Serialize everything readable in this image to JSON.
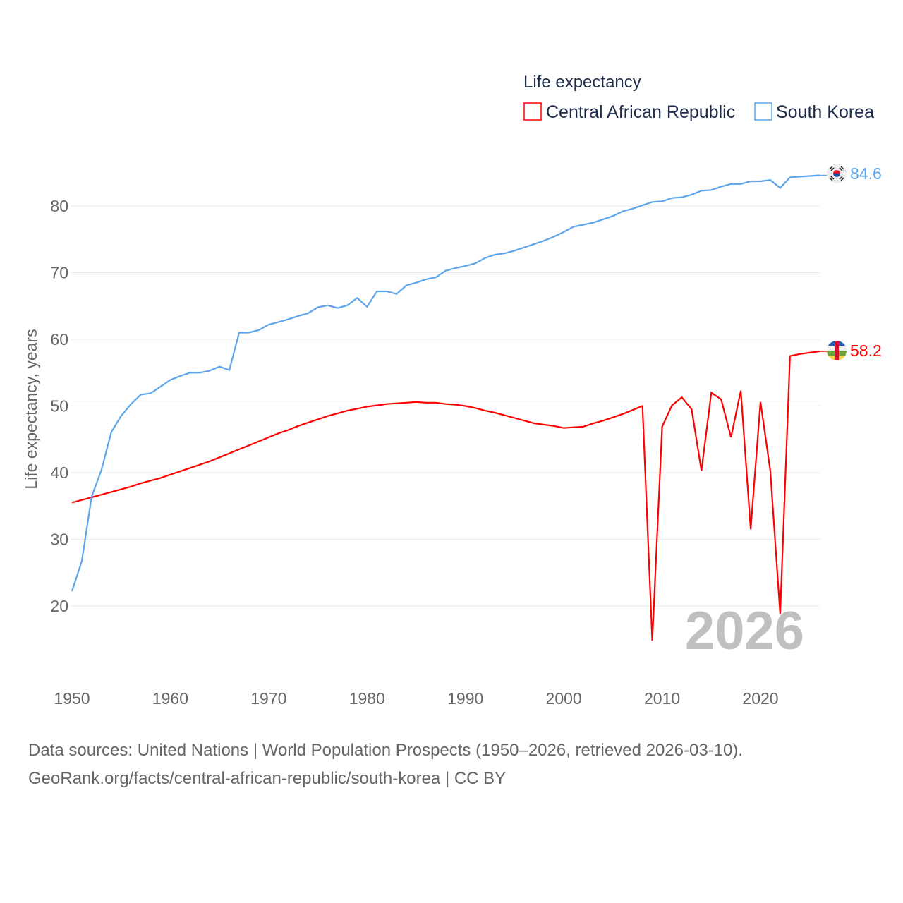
{
  "chart_data": {
    "type": "line",
    "title": "Life expectancy",
    "xlabel": "",
    "ylabel": "Life expectancy, years",
    "xlim": [
      1950,
      2026
    ],
    "ylim": [
      10,
      90
    ],
    "x_ticks": [
      1950,
      1960,
      1970,
      1980,
      1990,
      2000,
      2010,
      2020
    ],
    "y_ticks": [
      20,
      30,
      40,
      50,
      60,
      70,
      80
    ],
    "grid": true,
    "legend_position": "top-right",
    "year_watermark": "2026",
    "x_start": 1950,
    "series": [
      {
        "name": "Central African Republic",
        "color": "#ff0000",
        "end_label": "58.2",
        "flag": "central-african-republic-flag",
        "values": [
          35.5,
          35.9,
          36.3,
          36.7,
          37.1,
          37.5,
          37.9,
          38.4,
          38.8,
          39.2,
          39.7,
          40.2,
          40.7,
          41.2,
          41.7,
          42.3,
          42.9,
          43.5,
          44.1,
          44.7,
          45.3,
          45.9,
          46.4,
          47.0,
          47.5,
          48.0,
          48.5,
          48.9,
          49.3,
          49.6,
          49.9,
          50.1,
          50.3,
          50.4,
          50.5,
          50.6,
          50.5,
          50.5,
          50.3,
          50.2,
          50.0,
          49.7,
          49.3,
          49.0,
          48.6,
          48.2,
          47.8,
          47.4,
          47.2,
          47.0,
          46.7,
          46.8,
          46.9,
          47.4,
          47.8,
          48.3,
          48.8,
          49.4,
          50.0,
          14.8,
          46.9,
          50.1,
          51.3,
          49.5,
          40.3,
          52.0,
          51.0,
          45.3,
          52.3,
          31.5,
          50.6,
          40.3,
          18.8,
          57.5,
          57.8,
          58.0,
          58.2
        ]
      },
      {
        "name": "South Korea",
        "color": "#5da5ea",
        "end_label": "84.6",
        "flag": "south-korea-flag",
        "values": [
          22.2,
          26.7,
          36.4,
          40.4,
          46.1,
          48.5,
          50.3,
          51.7,
          51.9,
          52.9,
          53.9,
          54.5,
          55.0,
          55.0,
          55.3,
          55.9,
          55.4,
          61.0,
          61.0,
          61.4,
          62.2,
          62.6,
          63.0,
          63.5,
          63.9,
          64.8,
          65.1,
          64.7,
          65.1,
          66.2,
          64.9,
          67.2,
          67.2,
          66.8,
          68.1,
          68.5,
          69.0,
          69.3,
          70.3,
          70.7,
          71.0,
          71.4,
          72.2,
          72.7,
          72.9,
          73.3,
          73.8,
          74.3,
          74.8,
          75.4,
          76.1,
          76.9,
          77.2,
          77.5,
          78.0,
          78.5,
          79.2,
          79.6,
          80.1,
          80.6,
          80.7,
          81.2,
          81.3,
          81.7,
          82.3,
          82.4,
          82.9,
          83.3,
          83.3,
          83.7,
          83.7,
          83.9,
          82.7,
          84.3,
          84.4,
          84.5,
          84.6
        ]
      }
    ]
  },
  "source": {
    "line1": "Data sources: United Nations | World Population Prospects (1950–2026, retrieved 2026-03-10).",
    "line2": "GeoRank.org/facts/central-african-republic/south-korea | CC BY"
  }
}
